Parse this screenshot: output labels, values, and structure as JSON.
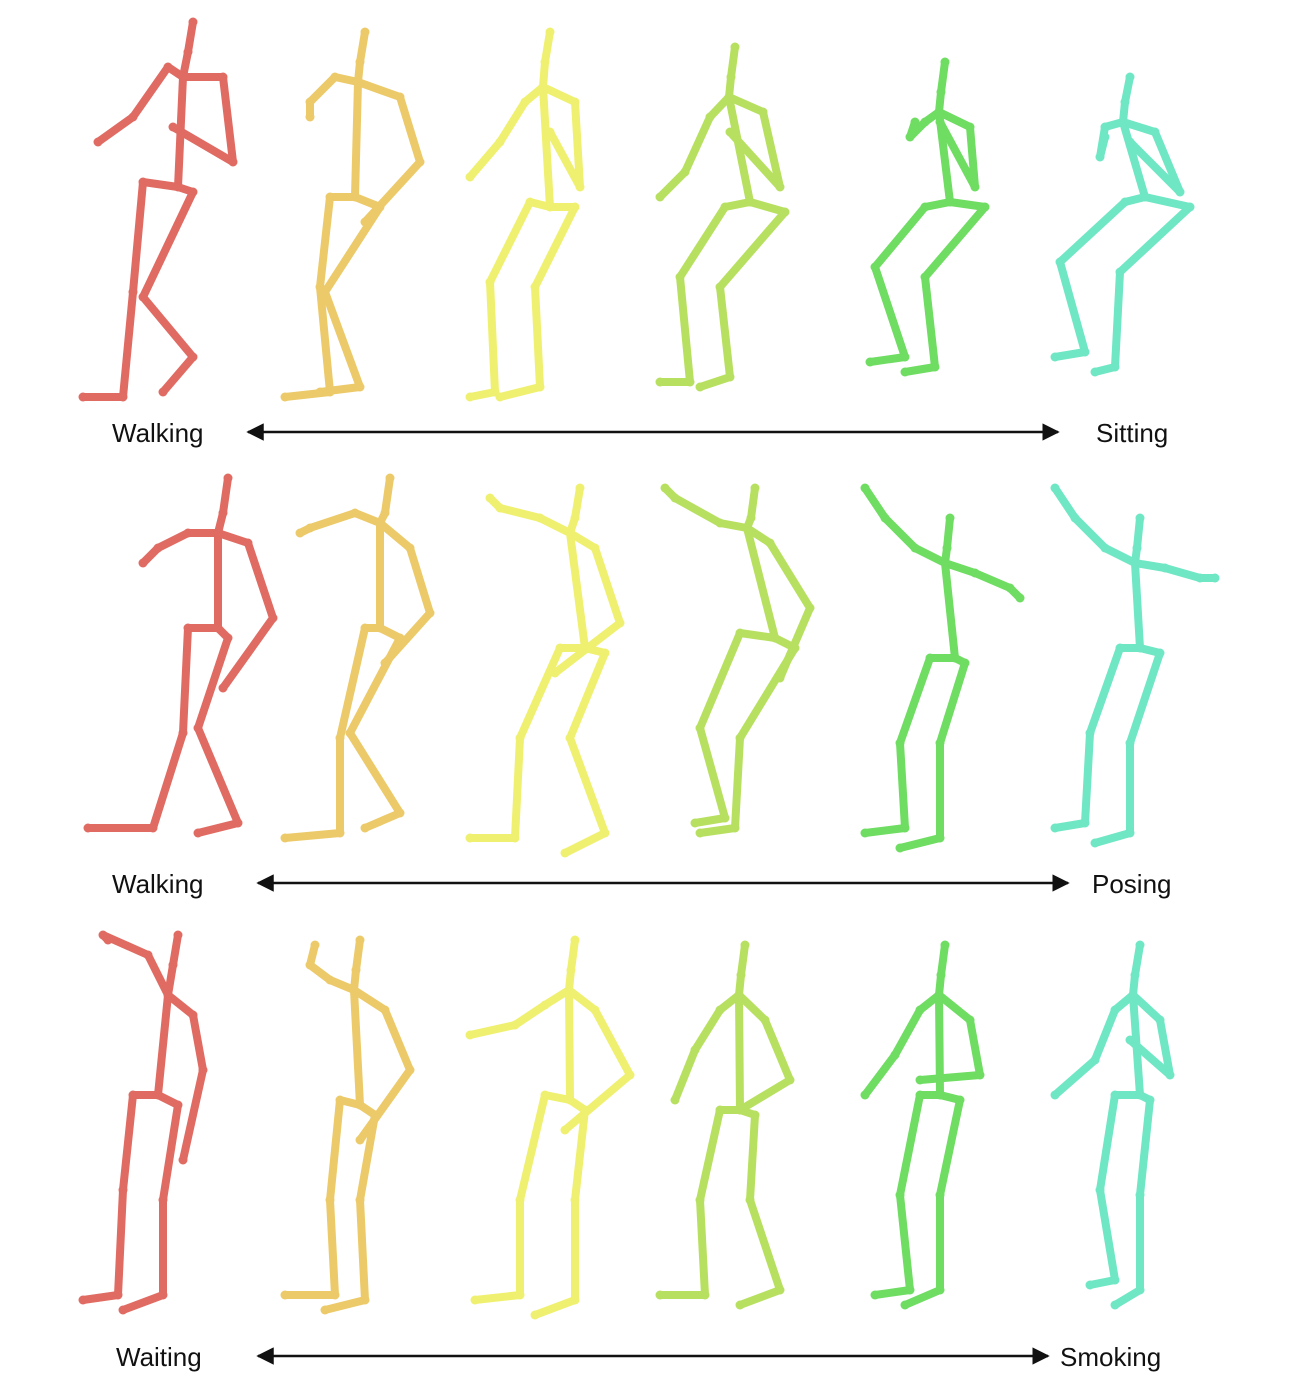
{
  "rows": [
    {
      "start_label": "Walking",
      "end_label": "Sitting"
    },
    {
      "start_label": "Walking",
      "end_label": "Posing"
    },
    {
      "start_label": "Waiting",
      "end_label": "Smoking"
    }
  ],
  "colors": [
    "#e06b63",
    "#ecca6a",
    "#eff06f",
    "#b8e060",
    "#6fdc62",
    "#6fe6c4"
  ],
  "frames_per_row": 6
}
